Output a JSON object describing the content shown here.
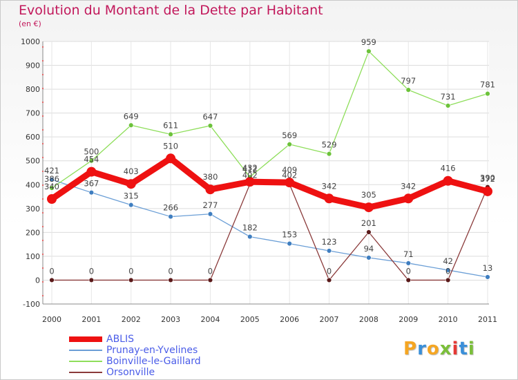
{
  "title": "Evolution du Montant de la Dette par Habitant",
  "subtitle": "(en €)",
  "logo": {
    "text": "Proxiti",
    "colors": [
      "#f5a623",
      "#3a8fd9",
      "#f5a623",
      "#7bbf3a",
      "#e53935",
      "#3a8fd9",
      "#7bbf3a"
    ]
  },
  "chart_data": {
    "type": "line",
    "x": [
      "2000",
      "2001",
      "2002",
      "2003",
      "2004",
      "2005",
      "2006",
      "2007",
      "2008",
      "2009",
      "2010",
      "2011"
    ],
    "ylim": [
      -100,
      1000
    ],
    "yticks": [
      -100,
      0,
      100,
      200,
      300,
      400,
      500,
      600,
      700,
      800,
      900,
      1000
    ],
    "grid": true,
    "legend_position": "bottom-left",
    "series": [
      {
        "name": "ABLIS",
        "color": "#ee1111",
        "values": [
          340,
          454,
          403,
          510,
          380,
          412,
          409,
          342,
          305,
          342,
          416,
          372
        ]
      },
      {
        "name": "Prunay-en-Yvelines",
        "color": "#6a9ed6",
        "values": [
          421,
          367,
          315,
          266,
          277,
          182,
          153,
          123,
          94,
          71,
          42,
          13
        ]
      },
      {
        "name": "Boinville-le-Gaillard",
        "color": "#8ede5a",
        "values": [
          386,
          500,
          649,
          611,
          647,
          432,
          569,
          529,
          959,
          797,
          731,
          781
        ]
      },
      {
        "name": "Orsonville",
        "color": "#8a3a3a",
        "values": [
          0,
          0,
          0,
          0,
          0,
          402,
          402,
          0,
          201,
          0,
          0,
          390
        ]
      }
    ]
  }
}
